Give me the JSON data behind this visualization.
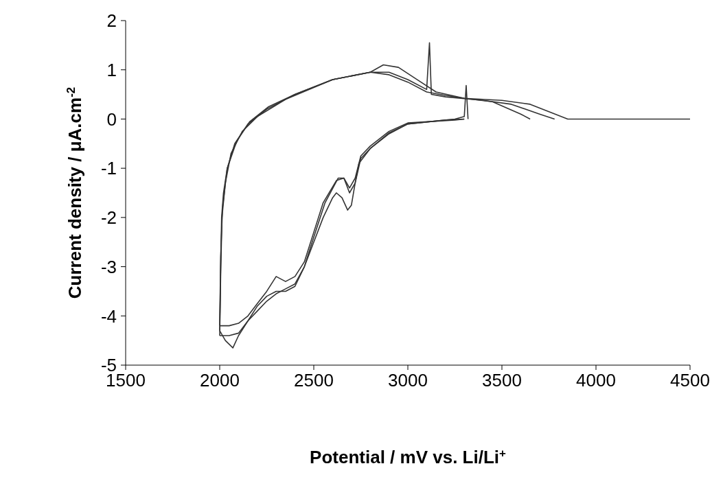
{
  "chart_data": {
    "type": "line",
    "xlabel": "Potential / mV vs. Li/Li$^{+}$",
    "ylabel": "Current density / μA.cm$^{-2}$",
    "xlim": [
      1500,
      4500
    ],
    "xticks": [
      1500,
      2000,
      2500,
      3000,
      3500,
      4000,
      4500
    ],
    "ylim": [
      -5,
      2
    ],
    "yticks": [
      -5,
      -4,
      -3,
      -2,
      -1,
      0,
      1,
      2
    ],
    "grid": false,
    "legend": false,
    "marker": "none",
    "line_style": "solid",
    "series": [
      {
        "color": "#333333",
        "x": [
          2000,
          2005,
          2010,
          2020,
          2040,
          2080,
          2150,
          2250,
          2400,
          2600,
          2800,
          2870,
          2950,
          3050,
          3150,
          3300,
          3500,
          3650,
          3750,
          3850,
          4000,
          4500
        ],
        "values": [
          -4.3,
          -3,
          -2,
          -1.5,
          -1,
          -0.5,
          -0.1,
          0.2,
          0.5,
          0.8,
          0.95,
          1.1,
          1.05,
          0.8,
          0.55,
          0.42,
          0.38,
          0.3,
          0.15,
          0,
          0,
          0
        ]
      },
      {
        "color": "#333333",
        "x": [
          2000,
          2030,
          2070,
          2100,
          2150,
          2200,
          2250,
          2300,
          2350,
          2400,
          2450,
          2500,
          2550,
          2600,
          2620,
          2650,
          2680,
          2700,
          2720,
          2750,
          2800,
          2900,
          3000,
          3200,
          3300
        ],
        "values": [
          -4.3,
          -4.5,
          -4.65,
          -4.4,
          -4.1,
          -3.9,
          -3.7,
          -3.55,
          -3.45,
          -3.35,
          -3,
          -2.5,
          -2,
          -1.6,
          -1.5,
          -1.6,
          -1.85,
          -1.75,
          -1.3,
          -0.8,
          -0.6,
          -0.3,
          -0.1,
          -0.02,
          0
        ]
      },
      {
        "color": "#333333",
        "x": [
          2000,
          2005,
          2015,
          2040,
          2090,
          2160,
          2260,
          2400,
          2600,
          2800,
          2900,
          3000,
          3100,
          3115,
          3125,
          3200,
          3400,
          3550,
          3700,
          3780
        ],
        "values": [
          -4.2,
          -2.8,
          -1.8,
          -1,
          -0.45,
          -0.05,
          0.25,
          0.5,
          0.8,
          0.95,
          0.95,
          0.8,
          0.6,
          1.55,
          0.5,
          0.45,
          0.38,
          0.3,
          0.1,
          0
        ]
      },
      {
        "color": "#333333",
        "x": [
          2000,
          2050,
          2100,
          2150,
          2200,
          2250,
          2300,
          2350,
          2400,
          2450,
          2500,
          2550,
          2620,
          2660,
          2690,
          2720,
          2750,
          2800,
          2900,
          3000,
          3250,
          3300
        ],
        "values": [
          -4.2,
          -4.2,
          -4.15,
          -4,
          -3.75,
          -3.5,
          -3.2,
          -3.3,
          -3.2,
          -2.9,
          -2.3,
          -1.7,
          -1.25,
          -1.2,
          -1.4,
          -1.2,
          -0.75,
          -0.55,
          -0.25,
          -0.08,
          -0.02,
          0
        ]
      },
      {
        "color": "#333333",
        "x": [
          2000,
          2005,
          2012,
          2030,
          2060,
          2120,
          2200,
          2350,
          2600,
          2800,
          2900,
          3000,
          3100,
          3200,
          3300,
          3450,
          3600,
          3650
        ],
        "values": [
          -4.4,
          -3.2,
          -2,
          -1.3,
          -0.7,
          -0.25,
          0.05,
          0.4,
          0.8,
          0.95,
          0.9,
          0.75,
          0.55,
          0.48,
          0.42,
          0.35,
          0.1,
          0
        ]
      },
      {
        "color": "#333333",
        "x": [
          2000,
          2050,
          2100,
          2150,
          2200,
          2250,
          2300,
          2350,
          2400,
          2450,
          2500,
          2560,
          2630,
          2660,
          2690,
          2720,
          2740,
          2800,
          2900,
          3000,
          3250,
          3300,
          3310,
          3320
        ],
        "values": [
          -4.4,
          -4.4,
          -4.35,
          -4.1,
          -3.8,
          -3.6,
          -3.5,
          -3.5,
          -3.4,
          -3,
          -2.4,
          -1.7,
          -1.2,
          -1.2,
          -1.5,
          -1.3,
          -0.9,
          -0.6,
          -0.28,
          -0.1,
          0,
          0.05,
          0.68,
          0
        ]
      }
    ]
  }
}
